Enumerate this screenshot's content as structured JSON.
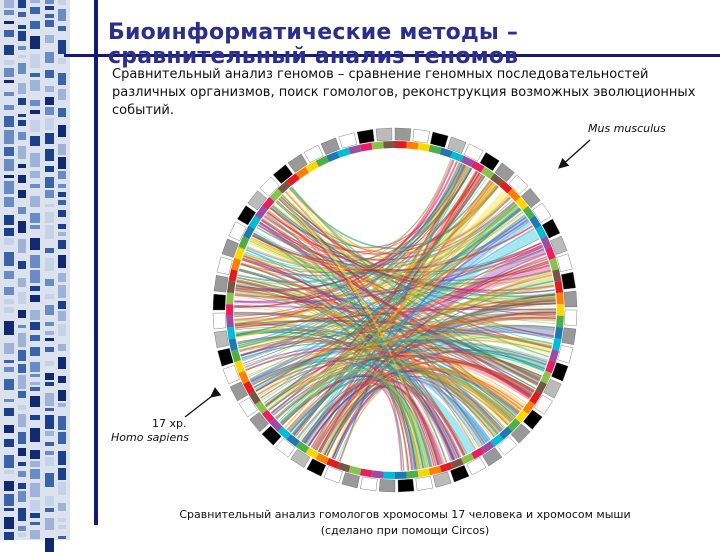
{
  "slide": {
    "title": "Биоинформатические методы – сравнительный анализ геномов",
    "intro": "Сравнительный анализ геномов – сравнение геномных последовательностей различных организмов, поиск гомологов, реконструкция возможных эволюционных событий.",
    "figure": {
      "label_mouse": "Mus musculus",
      "label_human_chr": "17 хр.",
      "label_human_species": "Homo sapiens",
      "caption": "Сравнительный анализ гомологов хромосомы 17 человека и хромосом мыши (сделано при помощи Circos)"
    },
    "colors": {
      "accent": "#151a7a",
      "title": "#2a2f8c"
    }
  }
}
